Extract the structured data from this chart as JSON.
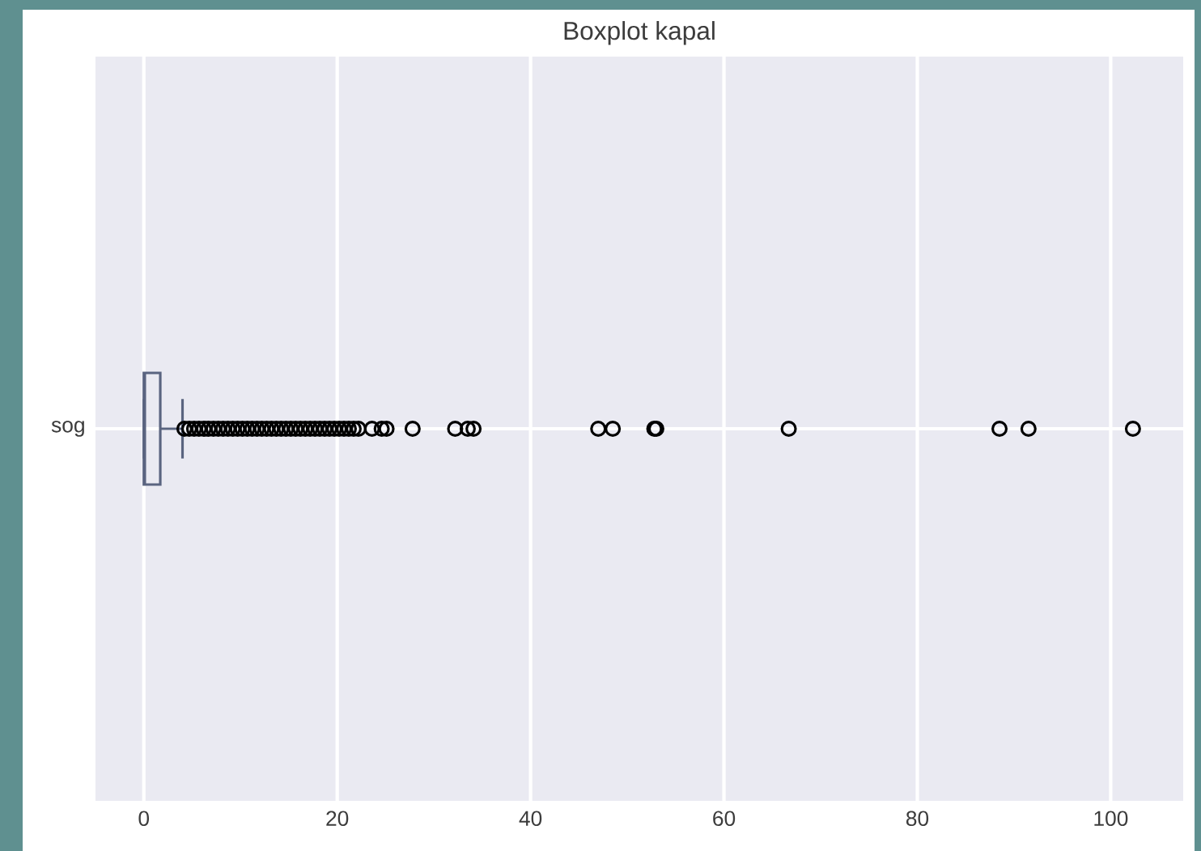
{
  "chart_data": {
    "type": "box",
    "title": "Boxplot kapal",
    "orientation": "horizontal",
    "categories": [
      "sog"
    ],
    "color": "#5a6480",
    "boxes": [
      {
        "low": 0,
        "q1": 0,
        "median": 0.1,
        "q3": 1.7,
        "high": 4.0,
        "outliers": [
          4.2,
          4.7,
          5.2,
          5.7,
          6.2,
          6.7,
          7.2,
          7.7,
          8.2,
          8.7,
          9.2,
          9.7,
          10.2,
          10.7,
          11.2,
          11.7,
          12.2,
          12.7,
          13.2,
          13.7,
          14.2,
          14.7,
          15.2,
          15.7,
          16.2,
          16.7,
          17.2,
          17.7,
          18.2,
          18.7,
          19.2,
          19.7,
          20.2,
          20.7,
          21.2,
          21.7,
          22.2,
          23.6,
          24.6,
          25.1,
          27.8,
          32.2,
          33.5,
          34.1,
          47.0,
          48.5,
          52.8,
          53.0,
          66.7,
          88.5,
          91.5,
          102.3
        ]
      }
    ],
    "xlim": [
      -5,
      107.5
    ],
    "xticks": [
      0,
      20,
      40,
      60,
      80,
      100
    ],
    "grid": true
  }
}
